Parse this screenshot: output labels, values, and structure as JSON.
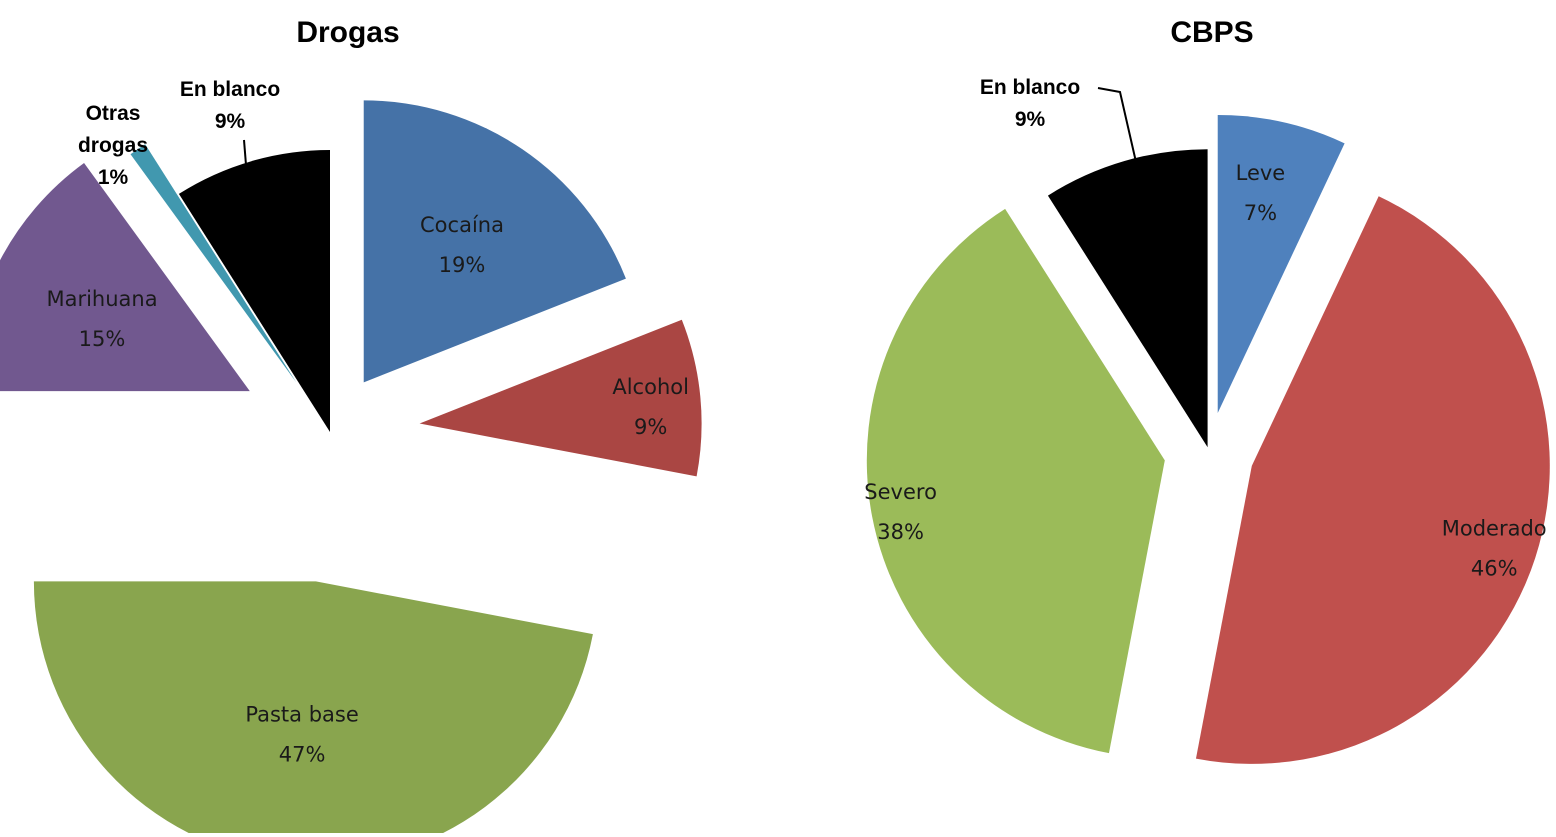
{
  "chart_data": [
    {
      "type": "pie",
      "title": "Drogas",
      "exploded": true,
      "slices": [
        {
          "label": "Cocaína",
          "value": 19,
          "value_label": "19%",
          "color": "#4572a7"
        },
        {
          "label": "Alcohol",
          "value": 9,
          "value_label": "9%",
          "color": "#aa4643"
        },
        {
          "label": "Pasta base",
          "value": 47,
          "value_label": "47%",
          "color": "#89a54e"
        },
        {
          "label": "Marihuana",
          "value": 15,
          "value_label": "15%",
          "color": "#71588f"
        },
        {
          "label": "Otras drogas",
          "value": 1,
          "value_label": "1%",
          "color": "#4198af"
        },
        {
          "label": "En blanco",
          "value": 9,
          "value_label": "9%",
          "color": "#000000"
        }
      ]
    },
    {
      "type": "pie",
      "title": "CBPS",
      "exploded": true,
      "slices": [
        {
          "label": "Leve",
          "value": 7,
          "value_label": "7%",
          "color": "#4f81bd"
        },
        {
          "label": "Moderado",
          "value": 46,
          "value_label": "46%",
          "color": "#c0504d"
        },
        {
          "label": "Severo",
          "value": 38,
          "value_label": "38%",
          "color": "#9bbb59"
        },
        {
          "label": "En blanco",
          "value": 9,
          "value_label": "9%",
          "color": "#000000"
        }
      ]
    }
  ]
}
